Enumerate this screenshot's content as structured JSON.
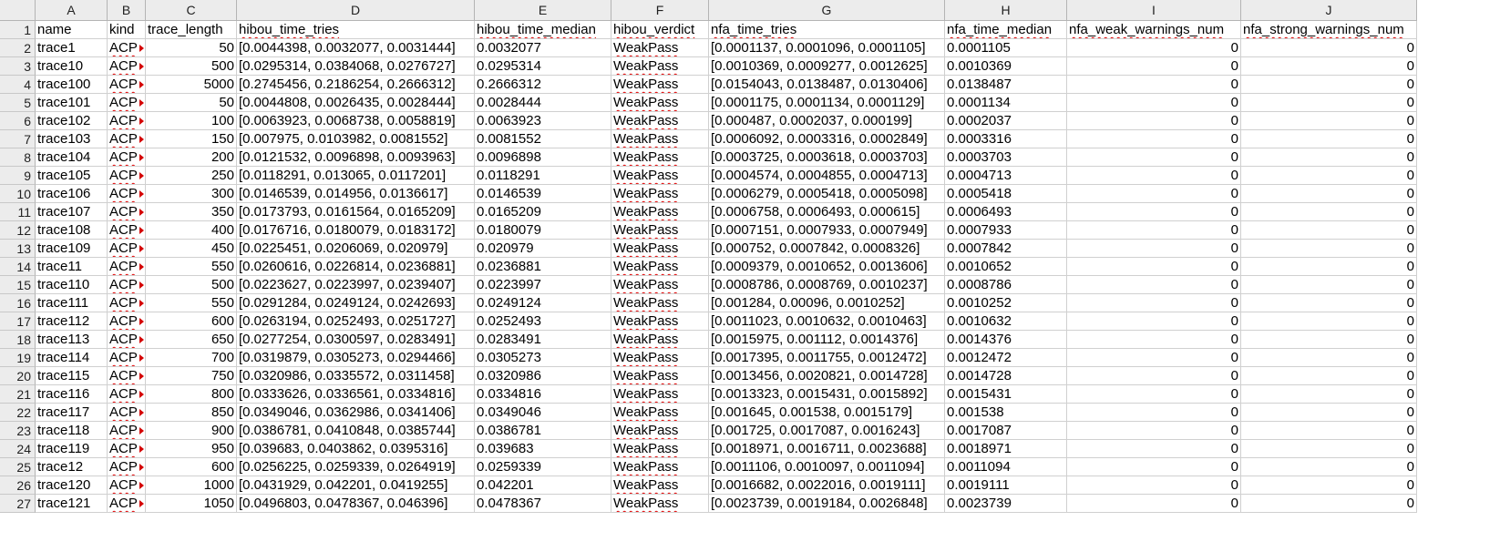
{
  "column_letters": [
    "A",
    "B",
    "C",
    "D",
    "E",
    "F",
    "G",
    "H",
    "I",
    "J"
  ],
  "row_numbers": [
    "1",
    "2",
    "3",
    "4",
    "5",
    "6",
    "7",
    "8",
    "9",
    "10",
    "11",
    "12",
    "13",
    "14",
    "15",
    "16",
    "17",
    "18",
    "19",
    "20",
    "21",
    "22",
    "23",
    "24",
    "25",
    "26",
    "27"
  ],
  "header_row": [
    "name",
    "kind",
    "trace_length",
    "hibou_time_tries",
    "hibou_time_median",
    "hibou_verdict",
    "nfa_time_tries",
    "nfa_time_median",
    "nfa_weak_warnings_num",
    "nfa_strong_warnings_num"
  ],
  "rows": [
    [
      "trace1",
      "ACP",
      "50",
      "[0.0044398, 0.0032077, 0.0031444]",
      "0.0032077",
      "WeakPass",
      "[0.0001137, 0.0001096, 0.0001105]",
      "0.0001105",
      "0",
      "0"
    ],
    [
      "trace10",
      "ACP",
      "500",
      "[0.0295314, 0.0384068, 0.0276727]",
      "0.0295314",
      "WeakPass",
      "[0.0010369, 0.0009277, 0.0012625]",
      "0.0010369",
      "0",
      "0"
    ],
    [
      "trace100",
      "ACP",
      "5000",
      "[0.2745456, 0.2186254, 0.2666312]",
      "0.2666312",
      "WeakPass",
      "[0.0154043, 0.0138487, 0.0130406]",
      "0.0138487",
      "0",
      "0"
    ],
    [
      "trace101",
      "ACP",
      "50",
      "[0.0044808, 0.0026435, 0.0028444]",
      "0.0028444",
      "WeakPass",
      "[0.0001175, 0.0001134, 0.0001129]",
      "0.0001134",
      "0",
      "0"
    ],
    [
      "trace102",
      "ACP",
      "100",
      "[0.0063923, 0.0068738, 0.0058819]",
      "0.0063923",
      "WeakPass",
      "[0.000487, 0.0002037, 0.000199]",
      "0.0002037",
      "0",
      "0"
    ],
    [
      "trace103",
      "ACP",
      "150",
      "[0.007975, 0.0103982, 0.0081552]",
      "0.0081552",
      "WeakPass",
      "[0.0006092, 0.0003316, 0.0002849]",
      "0.0003316",
      "0",
      "0"
    ],
    [
      "trace104",
      "ACP",
      "200",
      "[0.0121532, 0.0096898, 0.0093963]",
      "0.0096898",
      "WeakPass",
      "[0.0003725, 0.0003618, 0.0003703]",
      "0.0003703",
      "0",
      "0"
    ],
    [
      "trace105",
      "ACP",
      "250",
      "[0.0118291, 0.013065, 0.0117201]",
      "0.0118291",
      "WeakPass",
      "[0.0004574, 0.0004855, 0.0004713]",
      "0.0004713",
      "0",
      "0"
    ],
    [
      "trace106",
      "ACP",
      "300",
      "[0.0146539, 0.014956, 0.0136617]",
      "0.0146539",
      "WeakPass",
      "[0.0006279, 0.0005418, 0.0005098]",
      "0.0005418",
      "0",
      "0"
    ],
    [
      "trace107",
      "ACP",
      "350",
      "[0.0173793, 0.0161564, 0.0165209]",
      "0.0165209",
      "WeakPass",
      "[0.0006758, 0.0006493, 0.000615]",
      "0.0006493",
      "0",
      "0"
    ],
    [
      "trace108",
      "ACP",
      "400",
      "[0.0176716, 0.0180079, 0.0183172]",
      "0.0180079",
      "WeakPass",
      "[0.0007151, 0.0007933, 0.0007949]",
      "0.0007933",
      "0",
      "0"
    ],
    [
      "trace109",
      "ACP",
      "450",
      "[0.0225451, 0.0206069, 0.020979]",
      "0.020979",
      "WeakPass",
      "[0.000752, 0.0007842, 0.0008326]",
      "0.0007842",
      "0",
      "0"
    ],
    [
      "trace11",
      "ACP",
      "550",
      "[0.0260616, 0.0226814, 0.0236881]",
      "0.0236881",
      "WeakPass",
      "[0.0009379, 0.0010652, 0.0013606]",
      "0.0010652",
      "0",
      "0"
    ],
    [
      "trace110",
      "ACP",
      "500",
      "[0.0223627, 0.0223997, 0.0239407]",
      "0.0223997",
      "WeakPass",
      "[0.0008786, 0.0008769, 0.0010237]",
      "0.0008786",
      "0",
      "0"
    ],
    [
      "trace111",
      "ACP",
      "550",
      "[0.0291284, 0.0249124, 0.0242693]",
      "0.0249124",
      "WeakPass",
      "[0.001284, 0.00096, 0.0010252]",
      "0.0010252",
      "0",
      "0"
    ],
    [
      "trace112",
      "ACP",
      "600",
      "[0.0263194, 0.0252493, 0.0251727]",
      "0.0252493",
      "WeakPass",
      "[0.0011023, 0.0010632, 0.0010463]",
      "0.0010632",
      "0",
      "0"
    ],
    [
      "trace113",
      "ACP",
      "650",
      "[0.0277254, 0.0300597, 0.0283491]",
      "0.0283491",
      "WeakPass",
      "[0.0015975, 0.001112, 0.0014376]",
      "0.0014376",
      "0",
      "0"
    ],
    [
      "trace114",
      "ACP",
      "700",
      "[0.0319879, 0.0305273, 0.0294466]",
      "0.0305273",
      "WeakPass",
      "[0.0017395, 0.0011755, 0.0012472]",
      "0.0012472",
      "0",
      "0"
    ],
    [
      "trace115",
      "ACP",
      "750",
      "[0.0320986, 0.0335572, 0.0311458]",
      "0.0320986",
      "WeakPass",
      "[0.0013456, 0.0020821, 0.0014728]",
      "0.0014728",
      "0",
      "0"
    ],
    [
      "trace116",
      "ACP",
      "800",
      "[0.0333626, 0.0336561, 0.0334816]",
      "0.0334816",
      "WeakPass",
      "[0.0013323, 0.0015431, 0.0015892]",
      "0.0015431",
      "0",
      "0"
    ],
    [
      "trace117",
      "ACP",
      "850",
      "[0.0349046, 0.0362986, 0.0341406]",
      "0.0349046",
      "WeakPass",
      "[0.001645, 0.001538, 0.0015179]",
      "0.001538",
      "0",
      "0"
    ],
    [
      "trace118",
      "ACP",
      "900",
      "[0.0386781, 0.0410848, 0.0385744]",
      "0.0386781",
      "WeakPass",
      "[0.001725, 0.0017087, 0.0016243]",
      "0.0017087",
      "0",
      "0"
    ],
    [
      "trace119",
      "ACP",
      "950",
      "[0.039683, 0.0403862, 0.0395316]",
      "0.039683",
      "WeakPass",
      "[0.0018971, 0.0016711, 0.0023688]",
      "0.0018971",
      "0",
      "0"
    ],
    [
      "trace12",
      "ACP",
      "600",
      "[0.0256225, 0.0259339, 0.0264919]",
      "0.0259339",
      "WeakPass",
      "[0.0011106, 0.0010097, 0.0011094]",
      "0.0011094",
      "0",
      "0"
    ],
    [
      "trace120",
      "ACP",
      "1000",
      "[0.0431929, 0.042201, 0.0419255]",
      "0.042201",
      "WeakPass",
      "[0.0016682, 0.0022016, 0.0019111]",
      "0.0019111",
      "0",
      "0"
    ],
    [
      "trace121",
      "ACP",
      "1050",
      "[0.0496803, 0.0478367, 0.046396]",
      "0.0478367",
      "WeakPass",
      "[0.0023739, 0.0019184, 0.0026848]",
      "0.0023739",
      "0",
      "0"
    ]
  ],
  "colors": {
    "header_bg": "#ececec",
    "grid_line": "#d0d0d0",
    "spell_underline": "#e00000",
    "overflow_marker": "#d40000"
  }
}
